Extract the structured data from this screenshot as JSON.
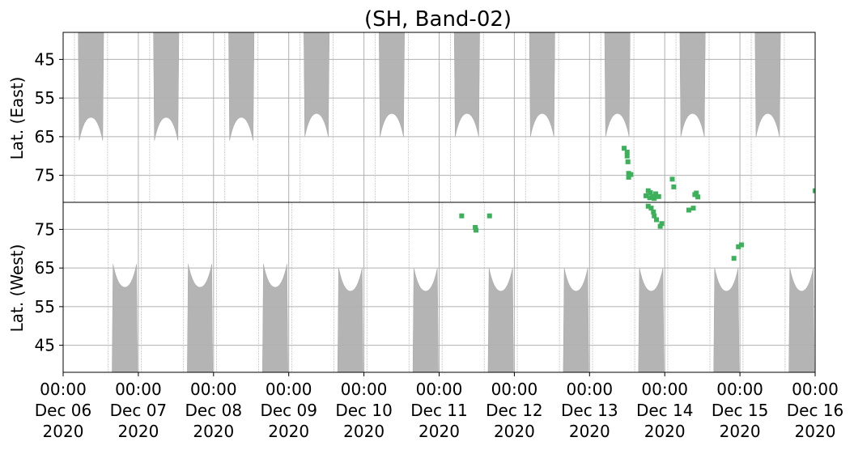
{
  "chart_data": {
    "type": "heatmap",
    "title": "(SH, Band-02)",
    "x_ticks": [
      {
        "date": "00:00\nDec 06\n2020",
        "day": 0
      },
      {
        "date": "00:00\nDec 07\n2020",
        "day": 1
      },
      {
        "date": "00:00\nDec 08\n2020",
        "day": 2
      },
      {
        "date": "00:00\nDec 09\n2020",
        "day": 3
      },
      {
        "date": "00:00\nDec 10\n2020",
        "day": 4
      },
      {
        "date": "00:00\nDec 11\n2020",
        "day": 5
      },
      {
        "date": "00:00\nDec 12\n2020",
        "day": 6
      },
      {
        "date": "00:00\nDec 13\n2020",
        "day": 7
      },
      {
        "date": "00:00\nDec 14\n2020",
        "day": 8
      },
      {
        "date": "00:00\nDec 15\n2020",
        "day": 9
      },
      {
        "date": "00:00\nDec 16\n2020",
        "day": 10
      }
    ],
    "grid": true,
    "panels": [
      {
        "id": "east",
        "ylabel": "Lat. (East)",
        "ylim": [
          38,
          82
        ],
        "yticks": [
          45,
          55,
          65,
          75
        ],
        "no_data": [
          {
            "center_day": 0.37,
            "half_width_day": 0.17,
            "max_lat": 60
          },
          {
            "center_day": 1.37,
            "half_width_day": 0.17,
            "max_lat": 60
          },
          {
            "center_day": 2.37,
            "half_width_day": 0.17,
            "max_lat": 60
          },
          {
            "center_day": 3.37,
            "half_width_day": 0.17,
            "max_lat": 59
          },
          {
            "center_day": 4.37,
            "half_width_day": 0.17,
            "max_lat": 59
          },
          {
            "center_day": 5.37,
            "half_width_day": 0.17,
            "max_lat": 59
          },
          {
            "center_day": 6.37,
            "half_width_day": 0.17,
            "max_lat": 59
          },
          {
            "center_day": 7.37,
            "half_width_day": 0.17,
            "max_lat": 59
          },
          {
            "center_day": 8.37,
            "half_width_day": 0.17,
            "max_lat": 59
          },
          {
            "center_day": 9.37,
            "half_width_day": 0.17,
            "max_lat": 59
          }
        ],
        "detections": [
          {
            "day": 7.46,
            "lat": 68.0
          },
          {
            "day": 7.5,
            "lat": 69.0
          },
          {
            "day": 7.5,
            "lat": 70.0
          },
          {
            "day": 7.51,
            "lat": 71.5
          },
          {
            "day": 7.52,
            "lat": 74.5
          },
          {
            "day": 7.55,
            "lat": 74.8
          },
          {
            "day": 7.52,
            "lat": 75.5
          },
          {
            "day": 7.78,
            "lat": 79.0
          },
          {
            "day": 7.81,
            "lat": 79.5
          },
          {
            "day": 7.84,
            "lat": 80.5
          },
          {
            "day": 7.86,
            "lat": 81.0
          },
          {
            "day": 7.8,
            "lat": 80.8
          },
          {
            "day": 7.88,
            "lat": 79.8
          },
          {
            "day": 7.92,
            "lat": 80.5
          },
          {
            "day": 7.75,
            "lat": 80.3
          },
          {
            "day": 8.1,
            "lat": 76.0
          },
          {
            "day": 8.12,
            "lat": 78.0
          },
          {
            "day": 8.4,
            "lat": 80.0
          },
          {
            "day": 8.44,
            "lat": 80.6
          },
          {
            "day": 8.42,
            "lat": 79.6
          },
          {
            "day": 10.0,
            "lat": 79.0
          }
        ]
      },
      {
        "id": "west",
        "ylabel": "Lat. (West)",
        "ylim": [
          38,
          82
        ],
        "yticks": [
          45,
          55,
          65,
          75
        ],
        "no_data": [
          {
            "center_day": 0.82,
            "half_width_day": 0.17,
            "max_lat": 60
          },
          {
            "center_day": 1.82,
            "half_width_day": 0.17,
            "max_lat": 60
          },
          {
            "center_day": 2.82,
            "half_width_day": 0.17,
            "max_lat": 60
          },
          {
            "center_day": 3.82,
            "half_width_day": 0.17,
            "max_lat": 59
          },
          {
            "center_day": 4.82,
            "half_width_day": 0.17,
            "max_lat": 59
          },
          {
            "center_day": 5.82,
            "half_width_day": 0.17,
            "max_lat": 59
          },
          {
            "center_day": 6.82,
            "half_width_day": 0.17,
            "max_lat": 59
          },
          {
            "center_day": 7.82,
            "half_width_day": 0.17,
            "max_lat": 59
          },
          {
            "center_day": 8.82,
            "half_width_day": 0.17,
            "max_lat": 59
          },
          {
            "center_day": 9.82,
            "half_width_day": 0.17,
            "max_lat": 59
          }
        ],
        "detections": [
          {
            "day": 5.3,
            "lat": 78.5
          },
          {
            "day": 5.48,
            "lat": 75.5
          },
          {
            "day": 5.49,
            "lat": 74.8
          },
          {
            "day": 5.67,
            "lat": 78.5
          },
          {
            "day": 7.82,
            "lat": 80.5
          },
          {
            "day": 7.85,
            "lat": 79.5
          },
          {
            "day": 7.86,
            "lat": 78.5
          },
          {
            "day": 7.89,
            "lat": 77.5
          },
          {
            "day": 7.94,
            "lat": 75.8
          },
          {
            "day": 7.96,
            "lat": 76.5
          },
          {
            "day": 7.78,
            "lat": 81.0
          },
          {
            "day": 8.32,
            "lat": 80.0
          },
          {
            "day": 8.38,
            "lat": 80.5
          },
          {
            "day": 8.98,
            "lat": 70.5
          },
          {
            "day": 9.02,
            "lat": 71.0
          },
          {
            "day": 8.92,
            "lat": 67.5
          }
        ]
      }
    ],
    "colors": {
      "no_data": "#b4b4b4",
      "detection": "#3cb05a",
      "grid": "#b0b0b0"
    }
  }
}
